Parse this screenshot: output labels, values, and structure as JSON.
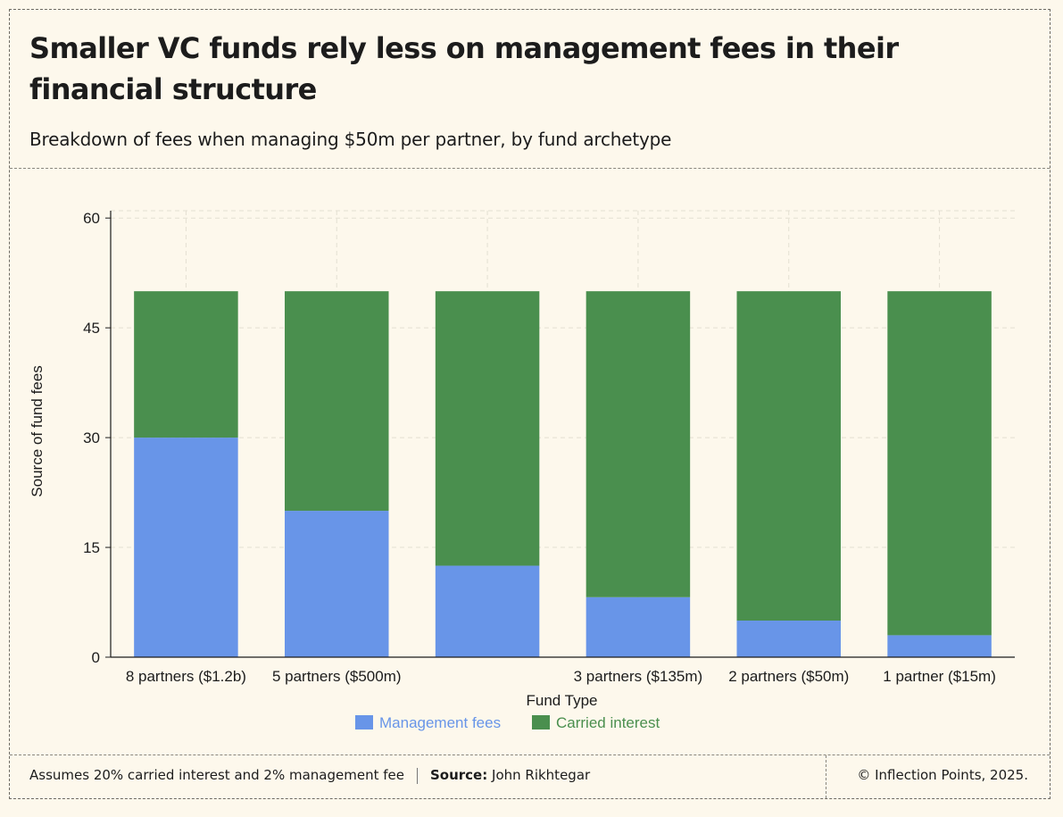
{
  "title": "Smaller VC funds rely less on management fees in their financial structure",
  "subtitle": "Breakdown of fees when managing $50m per partner, by fund archetype",
  "footer": {
    "note": "Assumes 20% carried interest and 2% management fee",
    "source_label": "Source:",
    "source_value": "John Rikhtegar",
    "copyright": "© Inflection Points, 2025."
  },
  "colors": {
    "management": "#6895e8",
    "carried": "#4a8f4e",
    "background": "#fdf8ec",
    "grid": "#e4dfd2"
  },
  "chart_data": {
    "type": "bar",
    "stacked": true,
    "title": "Smaller VC funds rely less on management fees in their financial structure",
    "xlabel": "Fund Type",
    "ylabel": "Source of fund fees",
    "ylim": [
      0,
      61
    ],
    "yticks": [
      0,
      15,
      30,
      45,
      60
    ],
    "grid": true,
    "legend_position": "bottom-center",
    "categories": [
      "8 partners ($1.2b)",
      "5 partners ($500m)",
      "",
      "3 partners ($135m)",
      "2 partners ($50m)",
      "1 partner ($15m)"
    ],
    "series": [
      {
        "name": "Management fees",
        "values": [
          30,
          20,
          12.5,
          8.2,
          5,
          3
        ]
      },
      {
        "name": "Carried interest",
        "values": [
          20,
          30,
          37.5,
          41.8,
          45,
          47
        ]
      }
    ]
  }
}
